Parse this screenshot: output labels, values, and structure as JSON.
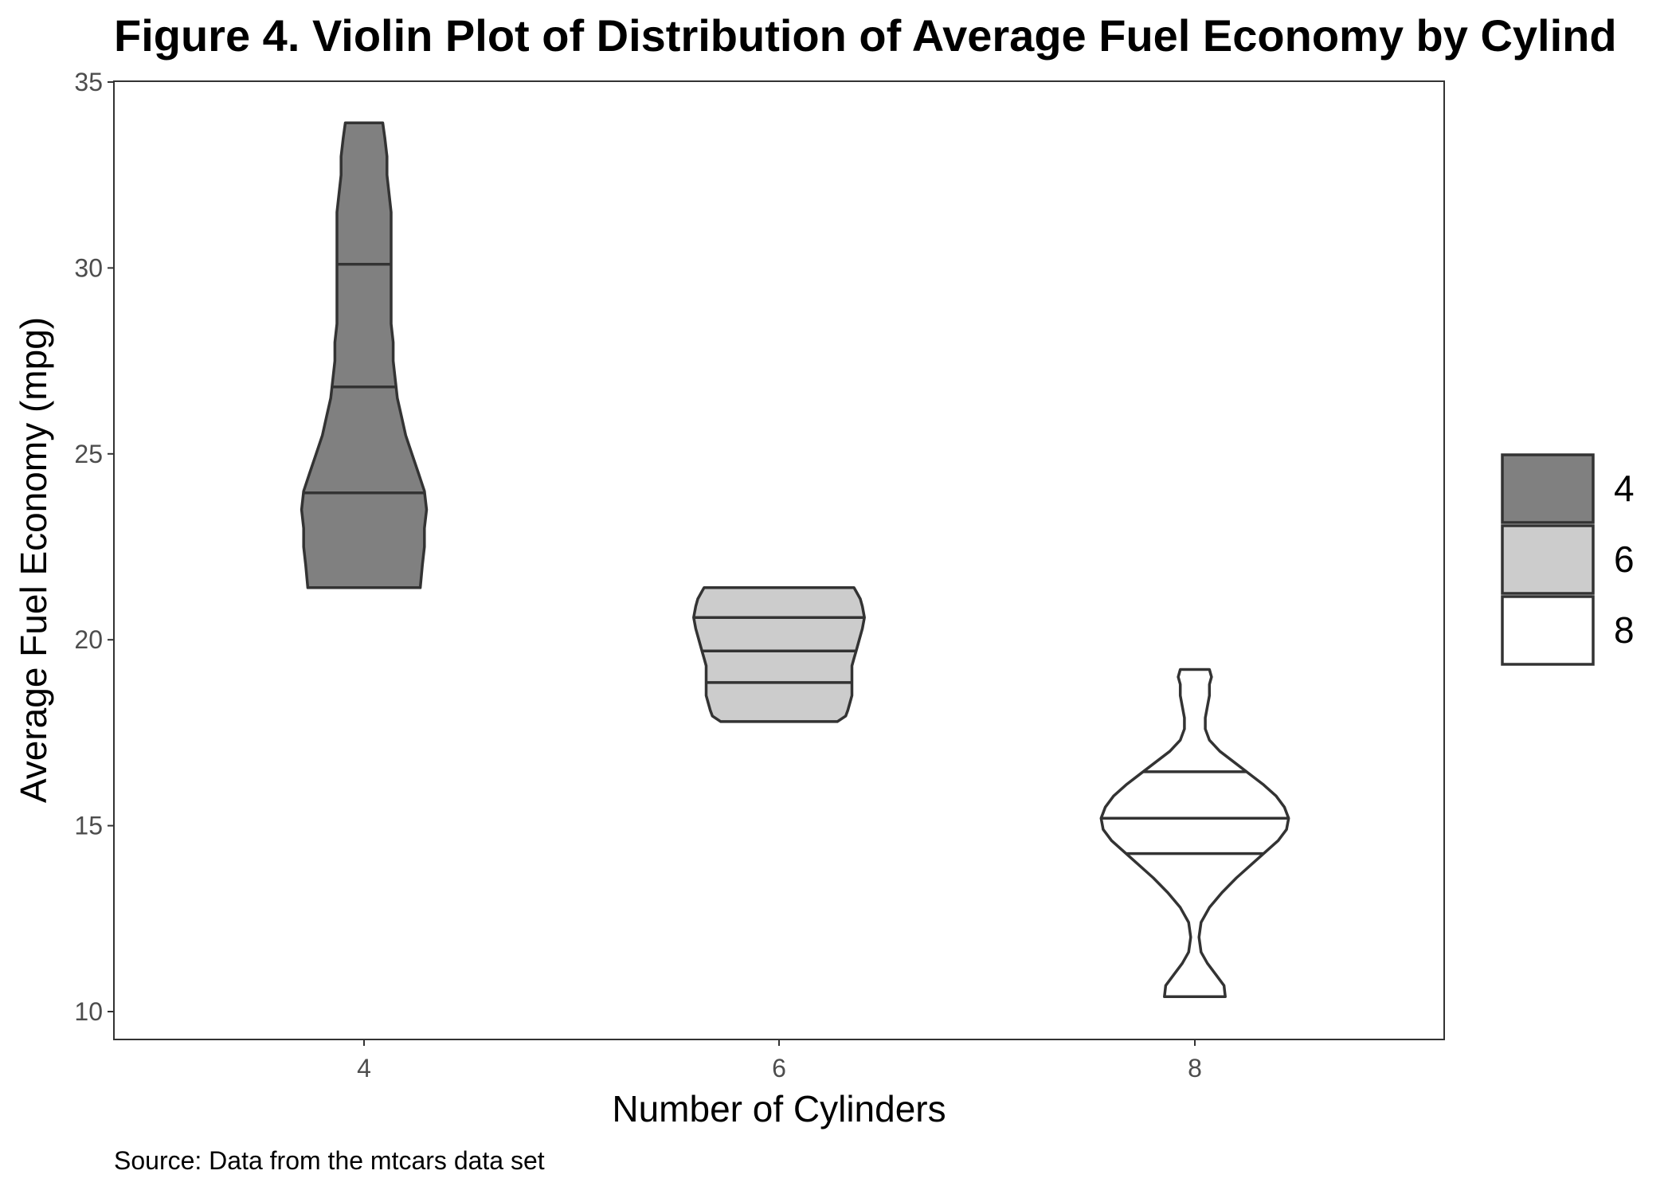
{
  "chart_data": {
    "type": "violin",
    "title": "Figure 4. Violin Plot of Distribution of Average Fuel Economy by Cylind",
    "xlabel": "Number of Cylinders",
    "ylabel": "Average Fuel Economy (mpg)",
    "caption": "Source: Data from the mtcars data set",
    "categories": [
      "4",
      "6",
      "8"
    ],
    "y_ticks": [
      "10",
      "15",
      "20",
      "25",
      "30",
      "35"
    ],
    "ylim": [
      9.3,
      35.1
    ],
    "grid": false,
    "legend_position": "right",
    "legend": [
      {
        "label": "4",
        "fill": "#808080"
      },
      {
        "label": "6",
        "fill": "#cccccc"
      },
      {
        "label": "8",
        "fill": "#ffffff"
      }
    ],
    "outline_color": "#333333",
    "series": [
      {
        "name": "4",
        "min": 21.4,
        "max": 33.9,
        "quantiles": [
          23.95,
          26.8,
          30.1
        ],
        "profile": [
          [
            21.4,
            0.27
          ],
          [
            22.0,
            0.28
          ],
          [
            22.5,
            0.29
          ],
          [
            23.0,
            0.29
          ],
          [
            23.5,
            0.3
          ],
          [
            24.0,
            0.29
          ],
          [
            24.5,
            0.26
          ],
          [
            25.0,
            0.23
          ],
          [
            25.5,
            0.2
          ],
          [
            26.0,
            0.18
          ],
          [
            26.5,
            0.16
          ],
          [
            27.0,
            0.15
          ],
          [
            27.5,
            0.14
          ],
          [
            28.0,
            0.14
          ],
          [
            28.5,
            0.13
          ],
          [
            29.0,
            0.13
          ],
          [
            29.5,
            0.13
          ],
          [
            30.0,
            0.13
          ],
          [
            30.5,
            0.13
          ],
          [
            31.0,
            0.13
          ],
          [
            31.5,
            0.13
          ],
          [
            32.0,
            0.12
          ],
          [
            32.5,
            0.11
          ],
          [
            33.0,
            0.11
          ],
          [
            33.5,
            0.1
          ],
          [
            33.9,
            0.09
          ]
        ]
      },
      {
        "name": "6",
        "min": 17.8,
        "max": 21.4,
        "quantiles": [
          18.85,
          19.7,
          20.6
        ],
        "profile": [
          [
            17.8,
            0.28
          ],
          [
            17.95,
            0.32
          ],
          [
            18.1,
            0.33
          ],
          [
            18.3,
            0.34
          ],
          [
            18.5,
            0.35
          ],
          [
            18.8,
            0.35
          ],
          [
            19.0,
            0.35
          ],
          [
            19.3,
            0.35
          ],
          [
            19.5,
            0.36
          ],
          [
            19.7,
            0.37
          ],
          [
            19.9,
            0.38
          ],
          [
            20.1,
            0.39
          ],
          [
            20.3,
            0.4
          ],
          [
            20.6,
            0.41
          ],
          [
            20.9,
            0.4
          ],
          [
            21.1,
            0.39
          ],
          [
            21.3,
            0.37
          ],
          [
            21.4,
            0.36
          ]
        ]
      },
      {
        "name": "8",
        "min": 10.4,
        "max": 19.2,
        "quantiles": [
          14.25,
          15.2,
          16.45
        ],
        "profile": [
          [
            10.4,
            0.146
          ],
          [
            10.7,
            0.14
          ],
          [
            11.0,
            0.1
          ],
          [
            11.3,
            0.06
          ],
          [
            11.6,
            0.03
          ],
          [
            12.0,
            0.02
          ],
          [
            12.4,
            0.03
          ],
          [
            12.8,
            0.07
          ],
          [
            13.2,
            0.13
          ],
          [
            13.6,
            0.2
          ],
          [
            14.0,
            0.28
          ],
          [
            14.3,
            0.34
          ],
          [
            14.6,
            0.4
          ],
          [
            14.9,
            0.44
          ],
          [
            15.2,
            0.45
          ],
          [
            15.5,
            0.43
          ],
          [
            15.8,
            0.39
          ],
          [
            16.1,
            0.33
          ],
          [
            16.4,
            0.26
          ],
          [
            16.7,
            0.19
          ],
          [
            17.0,
            0.12
          ],
          [
            17.3,
            0.07
          ],
          [
            17.6,
            0.05
          ],
          [
            17.9,
            0.05
          ],
          [
            18.2,
            0.06
          ],
          [
            18.5,
            0.07
          ],
          [
            18.8,
            0.07
          ],
          [
            19.0,
            0.08
          ],
          [
            19.2,
            0.07
          ]
        ]
      }
    ]
  }
}
